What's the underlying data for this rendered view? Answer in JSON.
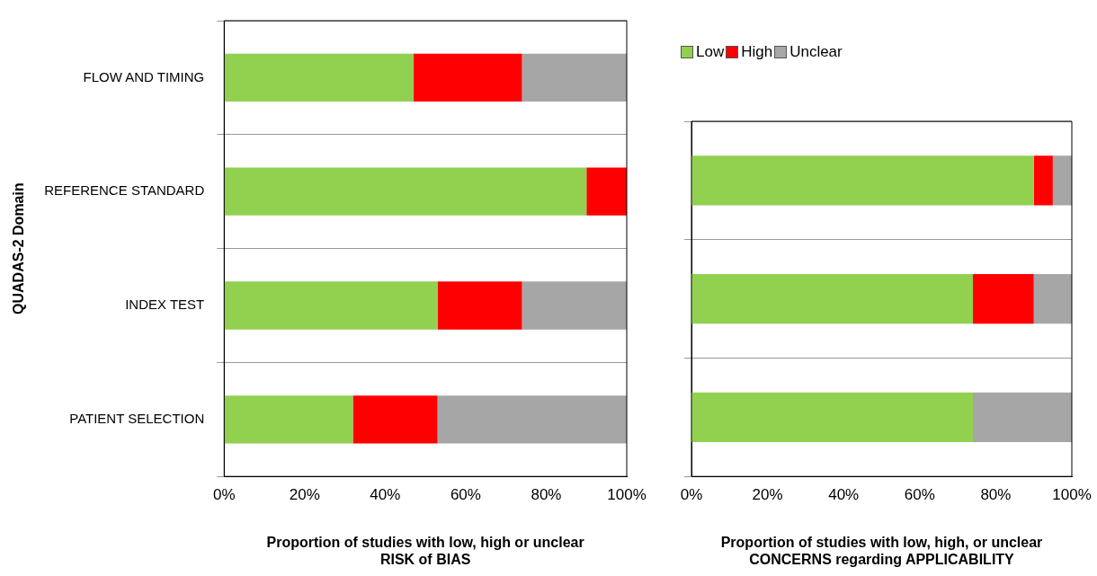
{
  "chart_data": [
    {
      "type": "bar",
      "orientation": "horizontal",
      "stacked": true,
      "xlabel": "Proportion of studies with low, high or unclear\nRISK of BIAS",
      "ylabel": "QUADAS-2 Domain",
      "categories": [
        "FLOW AND TIMING",
        "REFERENCE STANDARD",
        "INDEX TEST",
        "PATIENT SELECTION"
      ],
      "series": [
        {
          "color": "#92d050",
          "values": [
            47,
            90,
            53,
            32
          ]
        },
        {
          "color": "#ff0000",
          "values": [
            27,
            10,
            21,
            21
          ]
        },
        {
          "color": "#a6a6a6",
          "values": [
            26,
            0,
            26,
            47
          ]
        }
      ],
      "xlim": [
        0,
        100
      ],
      "xticks": [
        {
          "value": 0,
          "label": "0%"
        },
        {
          "value": 20,
          "label": "20%"
        },
        {
          "value": 40,
          "label": "40%"
        },
        {
          "value": 60,
          "label": "60%"
        },
        {
          "value": 80,
          "label": "80%"
        },
        {
          "value": 100,
          "label": "100%"
        }
      ],
      "grid": "y",
      "legend": false
    },
    {
      "type": "bar",
      "orientation": "horizontal",
      "stacked": true,
      "xlabel": "Proportion of studies with low, high, or unclear\nCONCERNS regarding APPLICABILITY",
      "categories": [
        null,
        null,
        null
      ],
      "series": [
        {
          "name": "Low",
          "color": "#92d050",
          "values": [
            90,
            74,
            74
          ]
        },
        {
          "name": "High",
          "color": "#ff0000",
          "values": [
            5,
            16,
            0
          ]
        },
        {
          "name": "Unclear",
          "color": "#a6a6a6",
          "values": [
            5,
            10,
            26
          ]
        }
      ],
      "xlim": [
        0,
        100
      ],
      "xticks": [
        {
          "value": 0,
          "label": "0%"
        },
        {
          "value": 20,
          "label": "20%"
        },
        {
          "value": 40,
          "label": "40%"
        },
        {
          "value": 60,
          "label": "60%"
        },
        {
          "value": 80,
          "label": "80%"
        },
        {
          "value": 100,
          "label": "100%"
        }
      ],
      "grid": "y",
      "legend": "top left"
    }
  ]
}
